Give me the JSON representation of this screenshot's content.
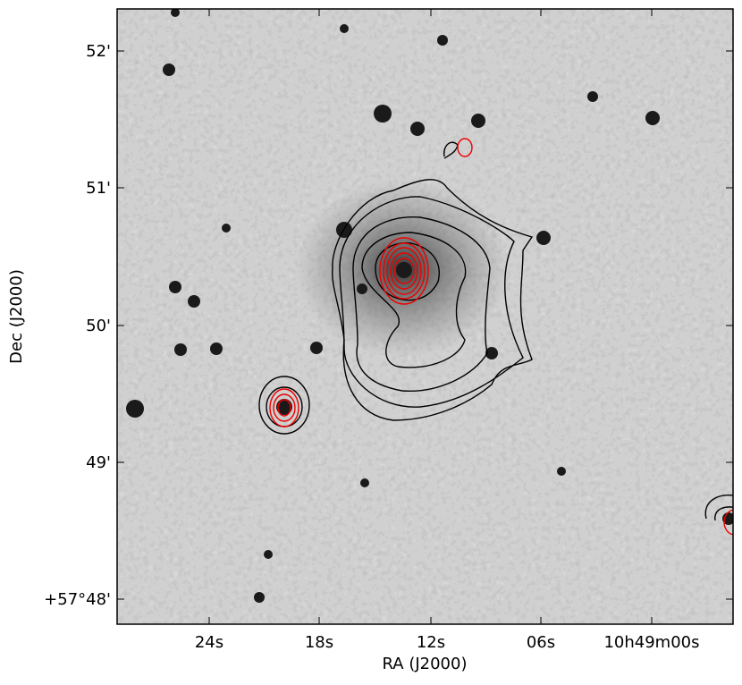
{
  "axes": {
    "x_label": "RA (J2000)",
    "y_label": "Dec (J2000)",
    "x_ticks": [
      "24s",
      "18s",
      "12s",
      "06s",
      "10h49m00s"
    ],
    "y_ticks": [
      "52'",
      "51'",
      "50'",
      "49'",
      "+57°48'"
    ]
  }
}
